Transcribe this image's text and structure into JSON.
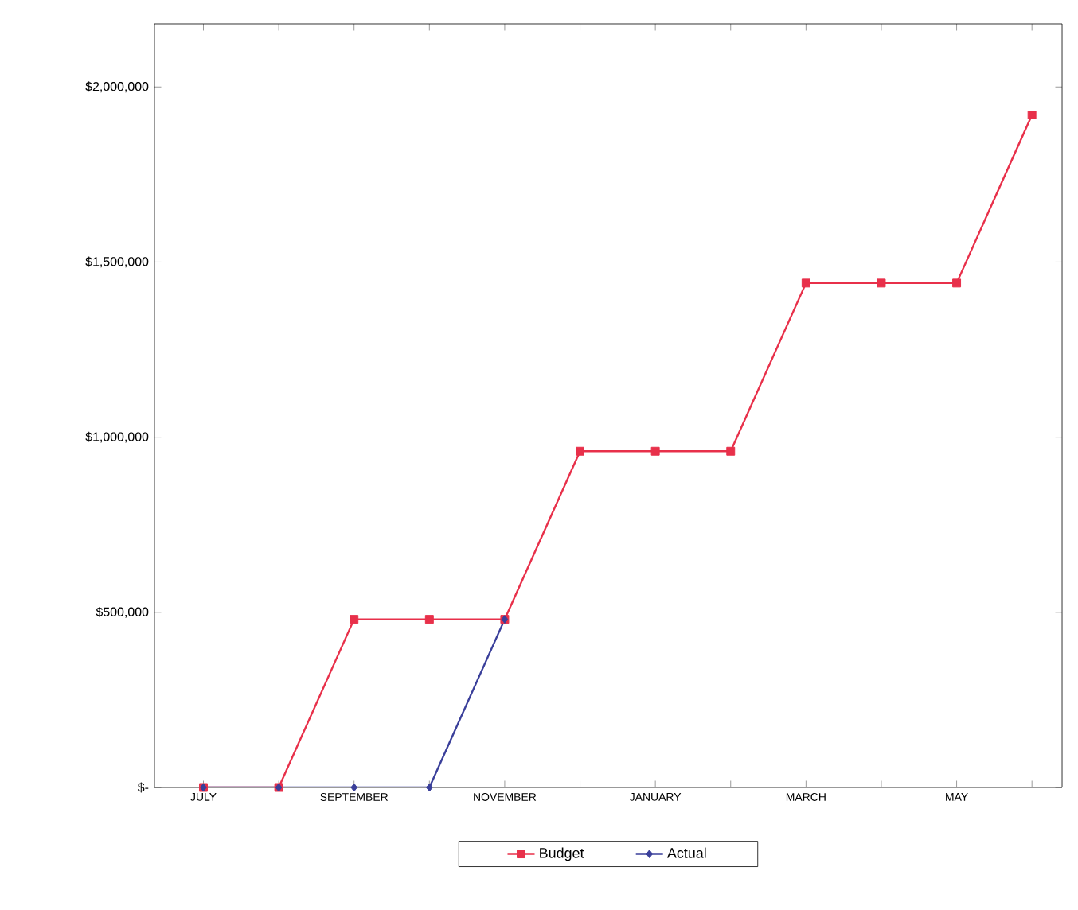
{
  "chart_data": {
    "type": "line",
    "categories": [
      "JULY",
      null,
      "SEPTEMBER",
      null,
      "NOVEMBER",
      null,
      "JANUARY",
      null,
      "MARCH",
      null,
      "MAY",
      null
    ],
    "series": [
      {
        "name": "Budget",
        "color": "#e8304a",
        "marker": "square",
        "values": [
          0,
          0,
          480000,
          480000,
          480000,
          960000,
          960000,
          960000,
          1440000,
          1440000,
          1440000,
          1920000
        ]
      },
      {
        "name": "Actual",
        "color": "#3a3f9a",
        "marker": "diamond",
        "values": [
          0,
          0,
          0,
          0,
          480000,
          null,
          null,
          null,
          null,
          null,
          null,
          null
        ]
      }
    ],
    "ylim": [
      0,
      2180000
    ],
    "yticks": [
      {
        "value": 0,
        "label": "$-"
      },
      {
        "value": 500000,
        "label": "$500,000"
      },
      {
        "value": 1000000,
        "label": "$1,000,000"
      },
      {
        "value": 1500000,
        "label": "$1,500,000"
      },
      {
        "value": 2000000,
        "label": "$2,000,000"
      }
    ],
    "grid": false,
    "legend": "bottom",
    "line_style": "solid"
  }
}
